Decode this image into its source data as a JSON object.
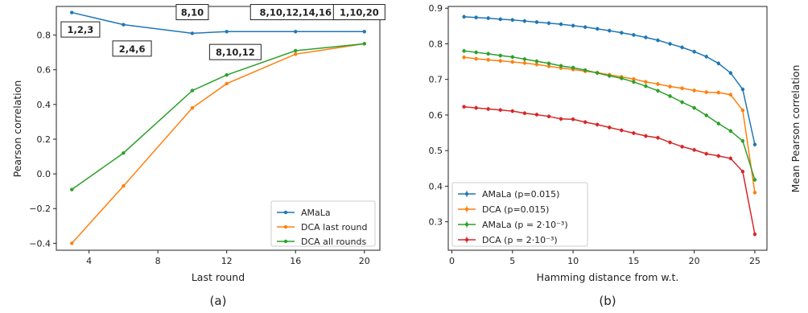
{
  "chart_data": [
    {
      "type": "line",
      "panel_label": "(a)",
      "xlabel": "Last round",
      "ylabel": "Pearson correlation",
      "xlim": [
        2.1,
        20.9
      ],
      "ylim": [
        -0.44,
        0.965
      ],
      "xticks": [
        4,
        8,
        12,
        16,
        20
      ],
      "yticks": [
        -0.4,
        -0.2,
        0.0,
        0.2,
        0.4,
        0.6,
        0.8
      ],
      "ytick_labels": [
        "−0.4",
        "−0.2",
        "0.0",
        "0.2",
        "0.4",
        "0.6",
        "0.8"
      ],
      "grid": false,
      "legend_position": "lower-right",
      "series": [
        {
          "name": "AMaLa",
          "color": "#1f77b4",
          "x": [
            3,
            6,
            10,
            12,
            16,
            20
          ],
          "y": [
            0.93,
            0.86,
            0.81,
            0.82,
            0.82,
            0.82
          ]
        },
        {
          "name": "DCA last round",
          "color": "#ff7f0e",
          "x": [
            3,
            6,
            10,
            12,
            16,
            20
          ],
          "y": [
            -0.4,
            -0.07,
            0.38,
            0.52,
            0.69,
            0.75
          ]
        },
        {
          "name": "DCA all rounds",
          "color": "#2ca02c",
          "x": [
            3,
            6,
            10,
            12,
            16,
            20
          ],
          "y": [
            -0.09,
            0.12,
            0.48,
            0.57,
            0.71,
            0.75
          ]
        }
      ],
      "annotations": [
        {
          "text": "1,2,3",
          "x": 3.5,
          "y": 0.83
        },
        {
          "text": "2,4,6",
          "x": 6.5,
          "y": 0.72
        },
        {
          "text": "8,10",
          "x": 10.0,
          "y": 0.93
        },
        {
          "text": "8,10,12",
          "x": 12.5,
          "y": 0.7
        },
        {
          "text": "8,10,12,14,16",
          "x": 16.0,
          "y": 0.93
        },
        {
          "text": "1,10,20",
          "x": 19.7,
          "y": 0.93
        }
      ]
    },
    {
      "type": "line",
      "panel_label": "(b)",
      "xlabel": "Hamming distance from w.t.",
      "ylabel": "Mean Pearson correlation",
      "xlim": [
        -0.3,
        26.0
      ],
      "ylim": [
        0.22,
        0.905
      ],
      "xticks": [
        0,
        5,
        10,
        15,
        20,
        25
      ],
      "yticks": [
        0.3,
        0.4,
        0.5,
        0.6,
        0.7,
        0.8,
        0.9
      ],
      "grid": false,
      "legend_position": "lower-left",
      "series": [
        {
          "name": "AMaLa (p=0.015)",
          "color": "#1f77b4",
          "x": [
            1,
            2,
            3,
            4,
            5,
            6,
            7,
            8,
            9,
            10,
            11,
            12,
            13,
            14,
            15,
            16,
            17,
            18,
            19,
            20,
            21,
            22,
            23,
            24,
            25
          ],
          "y": [
            0.876,
            0.874,
            0.872,
            0.869,
            0.867,
            0.864,
            0.861,
            0.858,
            0.855,
            0.851,
            0.847,
            0.842,
            0.837,
            0.831,
            0.825,
            0.818,
            0.81,
            0.8,
            0.79,
            0.778,
            0.764,
            0.745,
            0.718,
            0.672,
            0.517
          ]
        },
        {
          "name": "DCA (p=0.015)",
          "color": "#ff7f0e",
          "x": [
            1,
            2,
            3,
            4,
            5,
            6,
            7,
            8,
            9,
            10,
            11,
            12,
            13,
            14,
            15,
            16,
            17,
            18,
            19,
            20,
            21,
            22,
            23,
            24,
            25
          ],
          "y": [
            0.762,
            0.758,
            0.755,
            0.752,
            0.749,
            0.746,
            0.742,
            0.737,
            0.732,
            0.728,
            0.723,
            0.719,
            0.713,
            0.707,
            0.701,
            0.693,
            0.687,
            0.68,
            0.675,
            0.669,
            0.664,
            0.663,
            0.657,
            0.613,
            0.382
          ]
        },
        {
          "name": "AMaLa (p = 2·10⁻³)",
          "color": "#2ca02c",
          "x": [
            1,
            2,
            3,
            4,
            5,
            6,
            7,
            8,
            9,
            10,
            11,
            12,
            13,
            14,
            15,
            16,
            17,
            18,
            19,
            20,
            21,
            22,
            23,
            24,
            25
          ],
          "y": [
            0.78,
            0.776,
            0.772,
            0.767,
            0.763,
            0.757,
            0.751,
            0.745,
            0.738,
            0.733,
            0.726,
            0.718,
            0.71,
            0.703,
            0.693,
            0.681,
            0.668,
            0.653,
            0.636,
            0.62,
            0.599,
            0.576,
            0.555,
            0.527,
            0.418
          ]
        },
        {
          "name": "DCA (p = 2·10⁻³)",
          "color": "#d62728",
          "x": [
            1,
            2,
            3,
            4,
            5,
            6,
            7,
            8,
            9,
            10,
            11,
            12,
            13,
            14,
            15,
            16,
            17,
            18,
            19,
            20,
            21,
            22,
            23,
            24,
            25
          ],
          "y": [
            0.623,
            0.62,
            0.617,
            0.614,
            0.611,
            0.605,
            0.601,
            0.596,
            0.589,
            0.588,
            0.58,
            0.573,
            0.565,
            0.557,
            0.549,
            0.541,
            0.536,
            0.523,
            0.511,
            0.502,
            0.491,
            0.485,
            0.478,
            0.441,
            0.265
          ]
        }
      ]
    }
  ]
}
